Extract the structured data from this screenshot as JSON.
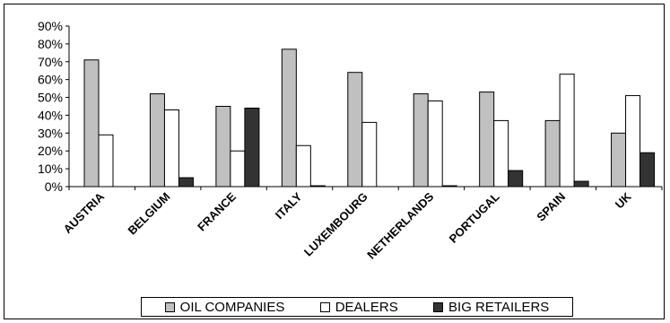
{
  "chart_data": {
    "type": "bar",
    "categories": [
      "AUSTRIA",
      "BELGIUM",
      "FRANCE",
      "ITALY",
      "LUXEMBOURG",
      "NETHERLANDS",
      "PORTUGAL",
      "SPAIN",
      "UK"
    ],
    "series": [
      {
        "name": "OIL COMPANIES",
        "color": "#c0c0c0",
        "values": [
          71,
          52,
          45,
          77,
          64,
          52,
          53,
          37,
          30
        ]
      },
      {
        "name": "DEALERS",
        "color": "#ffffff",
        "values": [
          29,
          43,
          20,
          23,
          36,
          48,
          37,
          63,
          51
        ]
      },
      {
        "name": "BIG RETAILERS",
        "color": "#333333",
        "values": [
          0,
          5,
          44,
          0.5,
          0,
          0.5,
          9,
          3,
          19
        ]
      }
    ],
    "ylim": [
      0,
      90
    ],
    "yticks": [
      "0%",
      "10%",
      "20%",
      "30%",
      "40%",
      "50%",
      "60%",
      "70%",
      "80%",
      "90%"
    ],
    "grid": false,
    "legend_position": "bottom"
  }
}
